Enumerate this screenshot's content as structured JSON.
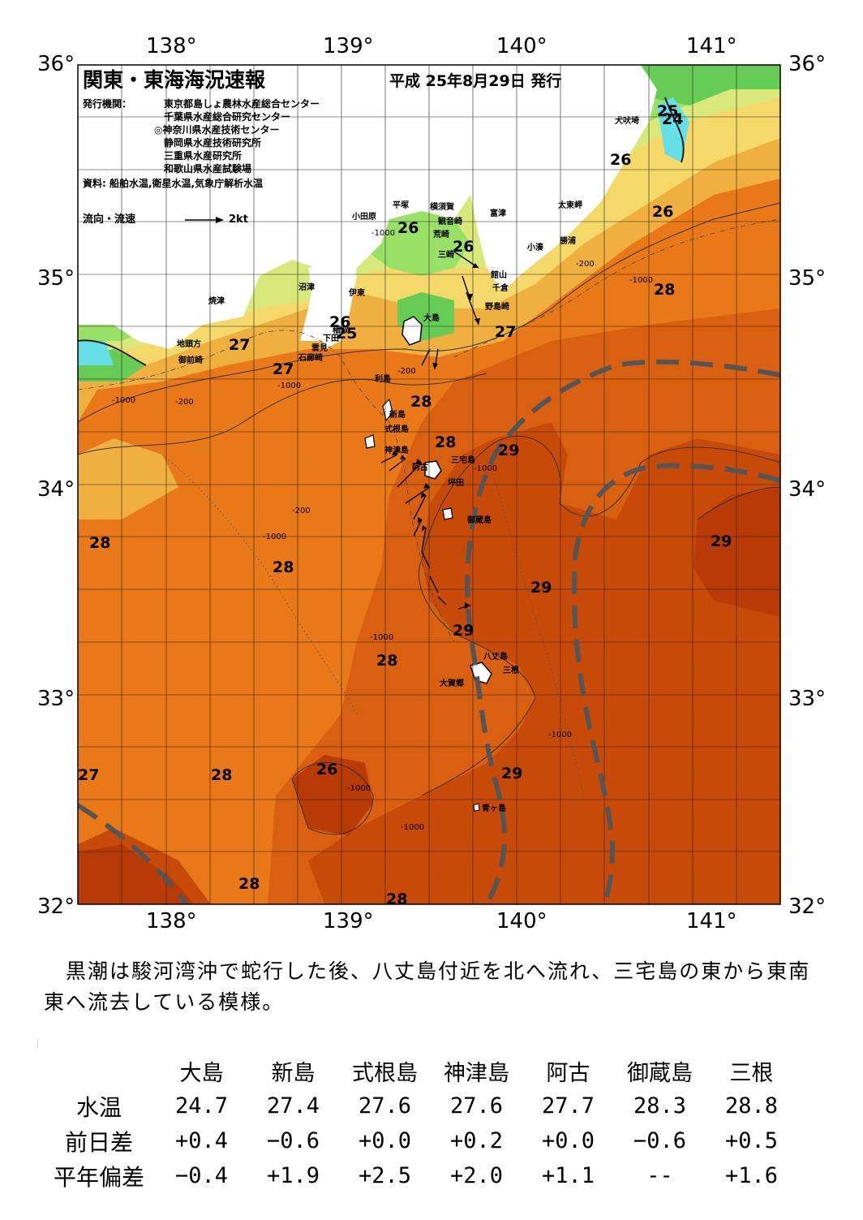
{
  "title": "関東・東海海況速報",
  "date": "平成 25年8月29日 発行",
  "issuer_label": "発行機関：",
  "issuers": [
    "東京都島しょ農林水産総合センター",
    "千葉県水産総合研究センター",
    "◎神奈川県水産技術センター",
    "静岡県水産技術研究所",
    "三重県水産研究所",
    "和歌山県水産試験場"
  ],
  "sources": "資料: 船舶水温,衛星水温,気象庁解析水温",
  "flow_legend": "流向・流速",
  "flow_unit": "2kt",
  "lon_labels": [
    "138°",
    "139°",
    "140°",
    "141°"
  ],
  "lat_labels": [
    "36°",
    "35°",
    "34°",
    "33°",
    "32°"
  ],
  "places": [
    {
      "name": "犬吠埼"
    },
    {
      "name": "太東岬"
    },
    {
      "name": "勝浦"
    },
    {
      "name": "小湊"
    },
    {
      "name": "富津"
    },
    {
      "name": "館山"
    },
    {
      "name": "千倉"
    },
    {
      "name": "野島崎"
    },
    {
      "name": "小田原"
    },
    {
      "name": "平塚"
    },
    {
      "name": "横須賀"
    },
    {
      "name": "観音崎"
    },
    {
      "name": "荒崎"
    },
    {
      "name": "三崎"
    },
    {
      "name": "沼津"
    },
    {
      "name": "伊東"
    },
    {
      "name": "焼津"
    },
    {
      "name": "地頭方"
    },
    {
      "name": "御前崎"
    },
    {
      "name": "稲取"
    },
    {
      "name": "下田"
    },
    {
      "name": "雲見"
    },
    {
      "name": "石廊崎"
    },
    {
      "name": "大島"
    },
    {
      "name": "利島"
    },
    {
      "name": "新島"
    },
    {
      "name": "式根島"
    },
    {
      "name": "神津島"
    },
    {
      "name": "三宅島"
    },
    {
      "name": "阿古"
    },
    {
      "name": "坪田"
    },
    {
      "name": "御蔵島"
    },
    {
      "name": "八丈島"
    },
    {
      "name": "三根"
    },
    {
      "name": "大賀郷"
    },
    {
      "name": "青ヶ島"
    }
  ],
  "temp_labels": [
    "25",
    "24",
    "26",
    "26",
    "28",
    "26",
    "26",
    "26",
    "25",
    "27",
    "27",
    "27",
    "28",
    "28",
    "29",
    "28",
    "28",
    "29",
    "29",
    "28",
    "29",
    "28",
    "29",
    "28",
    "28",
    "27"
  ],
  "depth_labels": [
    "-1000",
    "-200",
    "-1000",
    "-200",
    "-1000",
    "-200",
    "-1000",
    "-200",
    "-1000",
    "-1000",
    "-1000",
    "-1000",
    "-1000",
    "-1000"
  ],
  "summary": "　黒潮は駿河湾沖で蛇行した後、八丈島付近を北へ流れ、三宅島の東から東南東へ流去している模様。",
  "table": {
    "columns": [
      "大島",
      "新島",
      "式根島",
      "神津島",
      "阿古",
      "御蔵島",
      "三根"
    ],
    "rows": [
      {
        "label": "水温",
        "values": [
          "24.7",
          "27.4",
          "27.6",
          "27.6",
          "27.7",
          "28.3",
          "28.8"
        ]
      },
      {
        "label": "前日差",
        "values": [
          "+0.4",
          "−0.6",
          "+0.0",
          "+0.2",
          "+0.0",
          "−0.6",
          "+0.5"
        ]
      },
      {
        "label": "平年偏差",
        "values": [
          "−0.4",
          "+1.9",
          "+2.5",
          "+2.0",
          "+1.1",
          "--",
          "+1.6"
        ]
      }
    ]
  },
  "colors": {
    "t24": "#66e0e6",
    "t25": "#66cc55",
    "t26": "#99e066",
    "t26b": "#d8e87a",
    "t27": "#f4d86a",
    "t27b": "#f0b040",
    "t28": "#e87818",
    "t28b": "#d86010",
    "t29": "#c84a08",
    "t29b": "#b83a06",
    "kuroshio_axis": "#555555",
    "land": "#ffffff"
  }
}
